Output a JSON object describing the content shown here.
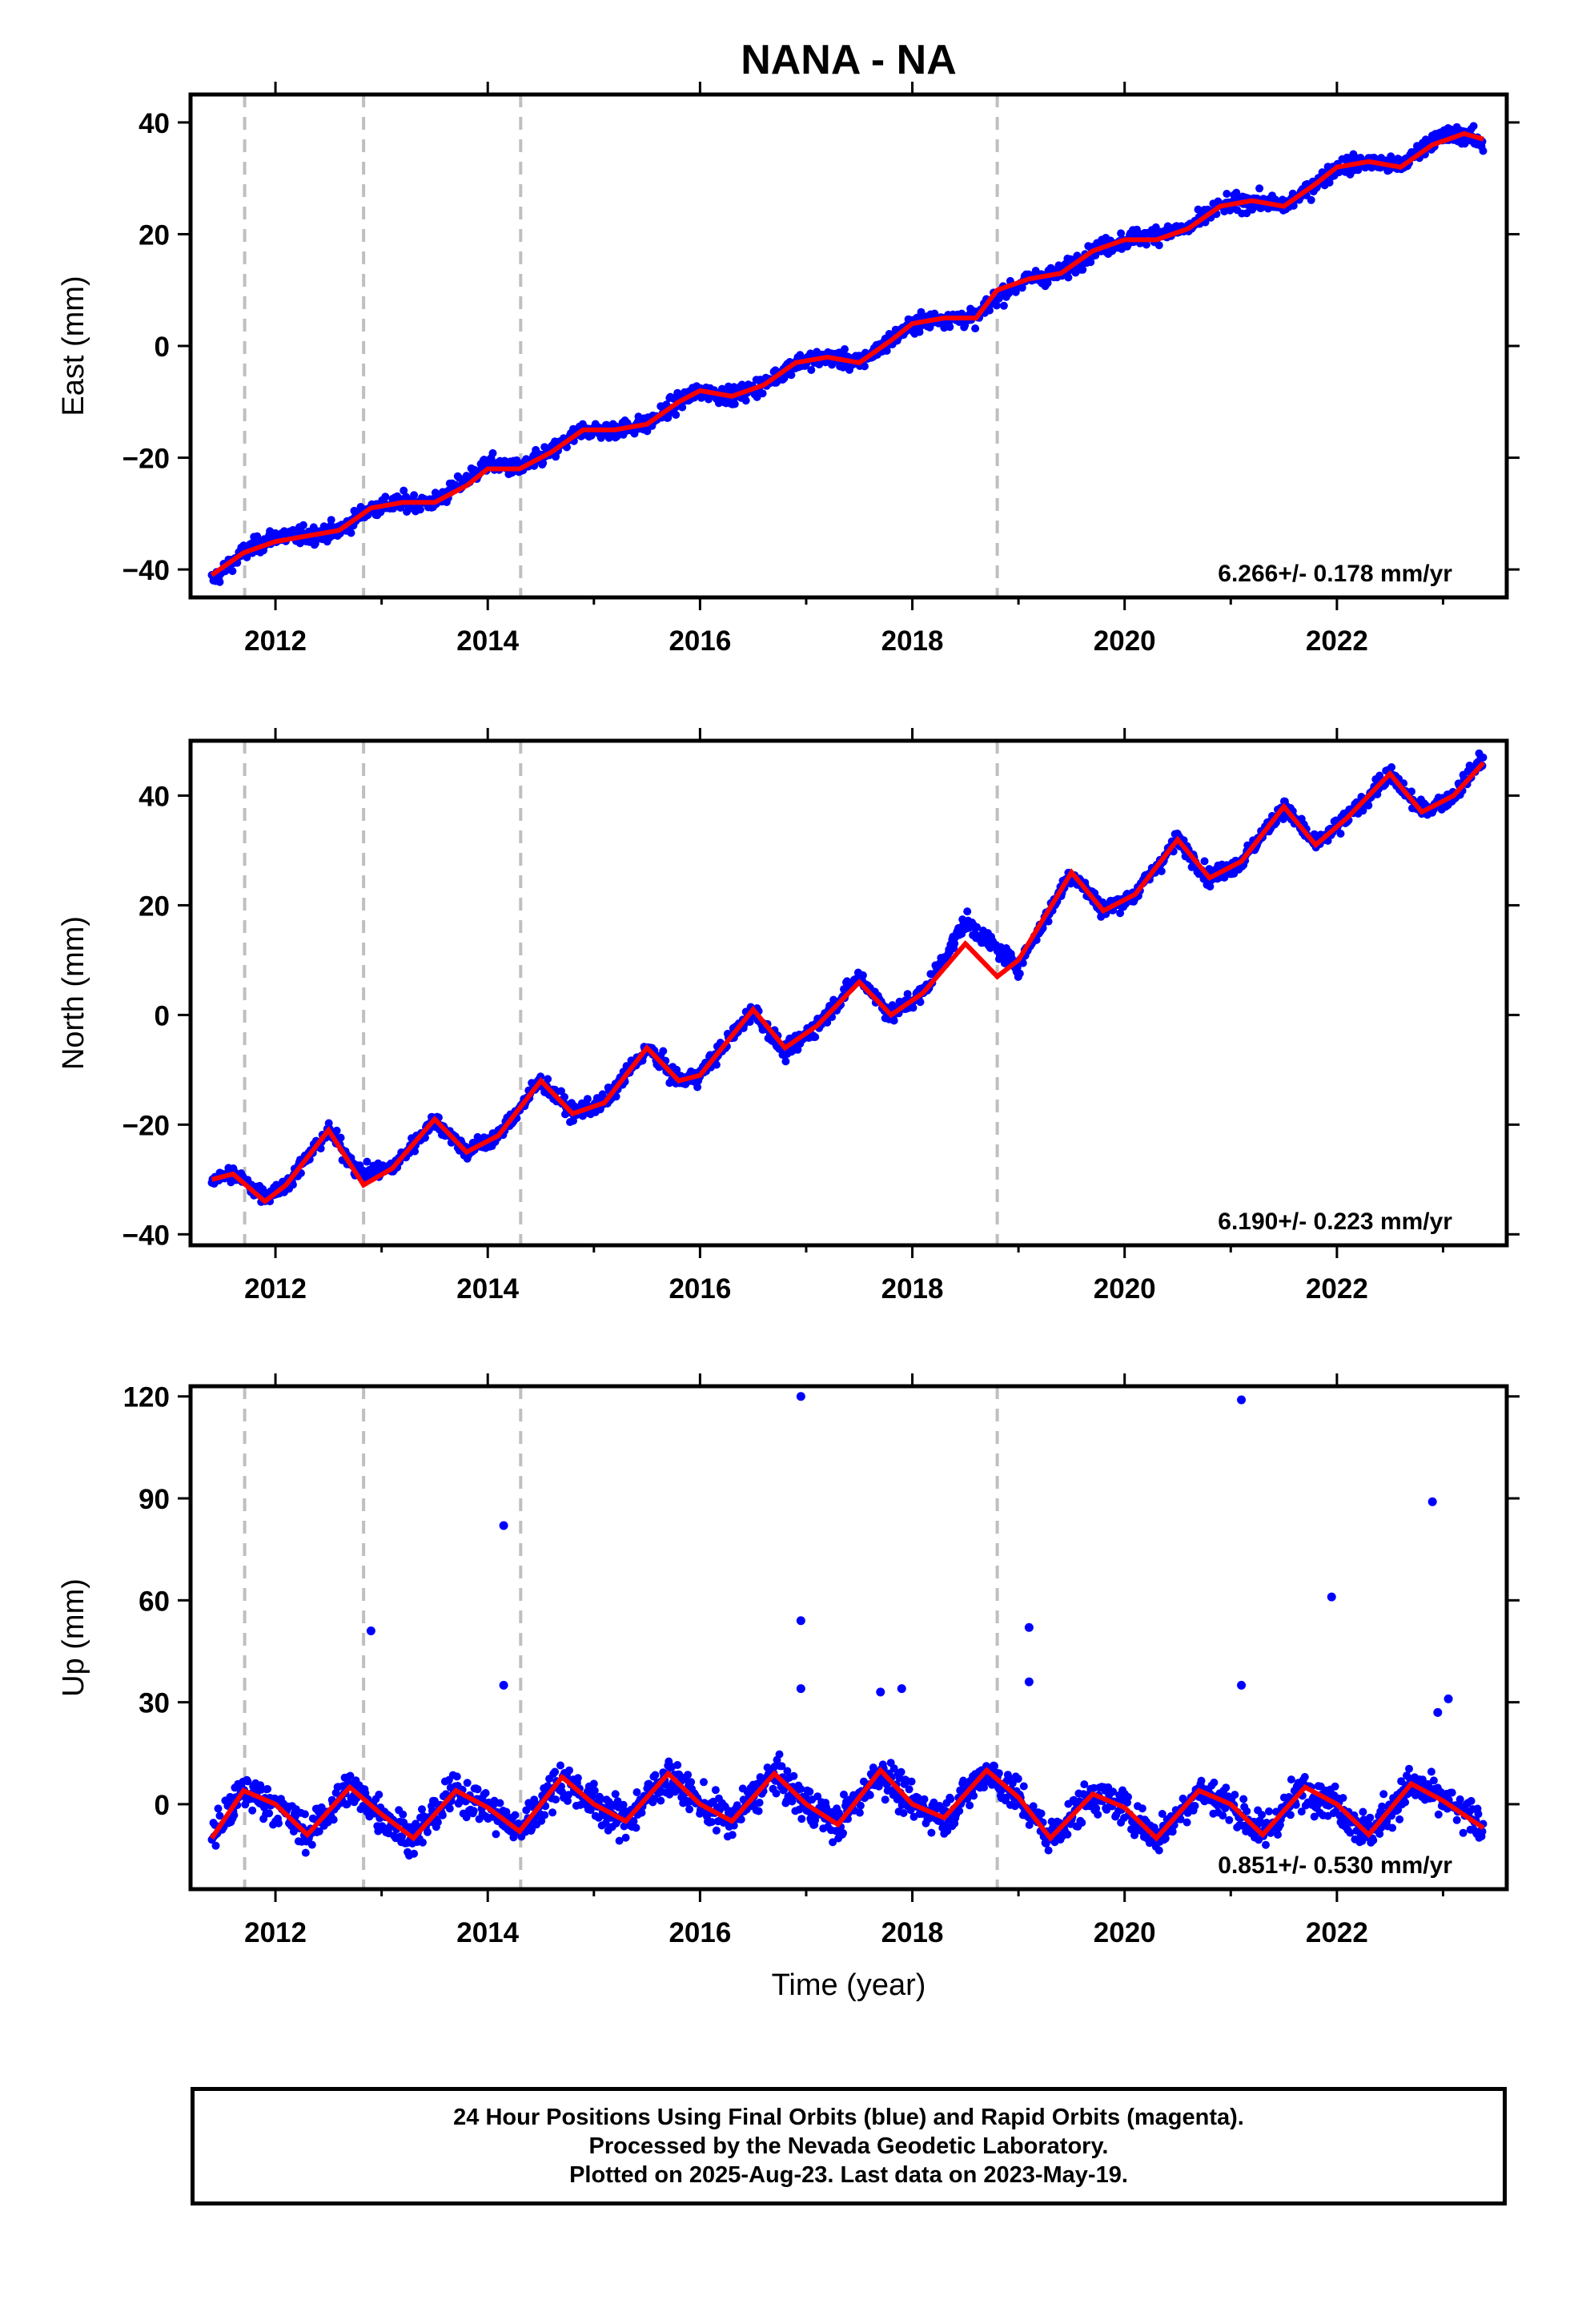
{
  "title": "NANA - NA",
  "colors": {
    "data": "#0000ff",
    "model": "#ff0000",
    "break_lines": "#bfbfbf"
  },
  "chart_data": [
    {
      "type": "scatter",
      "panel": "east",
      "ylabel": "East (mm)",
      "ylim": [
        -45,
        45
      ],
      "yticks": [
        -40,
        -20,
        0,
        20,
        40
      ],
      "xlim": [
        2011.2,
        2023.6
      ],
      "xticks": [
        2012,
        2014,
        2016,
        2018,
        2020,
        2022
      ],
      "rate_label": "6.266+/- 0.178 mm/yr",
      "breaks": [
        2011.71,
        2012.83,
        2014.31,
        2018.8
      ],
      "series": [
        {
          "name": "Final Orbits (blue)",
          "x": [
            2011.4,
            2011.7,
            2012.0,
            2012.3,
            2012.6,
            2012.9,
            2013.2,
            2013.5,
            2013.8,
            2014.0,
            2014.3,
            2014.6,
            2014.9,
            2015.2,
            2015.5,
            2015.8,
            2016.0,
            2016.3,
            2016.6,
            2016.9,
            2017.2,
            2017.5,
            2017.8,
            2018.0,
            2018.3,
            2018.6,
            2018.8,
            2019.1,
            2019.4,
            2019.7,
            2020.0,
            2020.3,
            2020.6,
            2020.9,
            2021.2,
            2021.5,
            2021.8,
            2022.0,
            2022.3,
            2022.6,
            2022.9,
            2023.2,
            2023.38
          ],
          "values": [
            -42,
            -37,
            -34,
            -34,
            -33,
            -29,
            -28,
            -28,
            -24,
            -21,
            -22,
            -19,
            -15,
            -15,
            -14,
            -10,
            -8,
            -9,
            -7,
            -3,
            -2,
            -3,
            1,
            4,
            5,
            5,
            9,
            12,
            13,
            17,
            19,
            20,
            21,
            25,
            26,
            25,
            29,
            32,
            33,
            32,
            37,
            38,
            36
          ]
        },
        {
          "name": "Model",
          "x": [
            2011.4,
            2011.7,
            2012.0,
            2012.3,
            2012.6,
            2012.9,
            2013.2,
            2013.5,
            2013.8,
            2014.0,
            2014.3,
            2014.6,
            2014.9,
            2015.2,
            2015.5,
            2015.8,
            2016.0,
            2016.3,
            2016.6,
            2016.9,
            2017.2,
            2017.5,
            2017.8,
            2018.0,
            2018.3,
            2018.6,
            2018.8,
            2019.1,
            2019.4,
            2019.7,
            2020.0,
            2020.3,
            2020.6,
            2020.9,
            2021.2,
            2021.5,
            2021.8,
            2022.0,
            2022.3,
            2022.6,
            2022.9,
            2023.2,
            2023.38
          ],
          "values": [
            -41,
            -37,
            -35,
            -34,
            -33,
            -29,
            -28,
            -28,
            -25,
            -22,
            -22,
            -19,
            -15,
            -15,
            -14,
            -10,
            -8,
            -9,
            -7,
            -3,
            -2,
            -3,
            1,
            4,
            5,
            5,
            10,
            12,
            13,
            17,
            19,
            19,
            21,
            25,
            26,
            25,
            29,
            32,
            33,
            32,
            36,
            38,
            37
          ]
        }
      ]
    },
    {
      "type": "scatter",
      "panel": "north",
      "ylabel": "North (mm)",
      "ylim": [
        -42,
        50
      ],
      "yticks": [
        -40,
        -20,
        0,
        20,
        40
      ],
      "xlim": [
        2011.2,
        2023.6
      ],
      "xticks": [
        2012,
        2014,
        2016,
        2018,
        2020,
        2022
      ],
      "rate_label": "6.190+/- 0.223 mm/yr",
      "breaks": [
        2011.71,
        2012.83,
        2014.31,
        2018.8
      ],
      "series": [
        {
          "name": "Final Orbits (blue)",
          "x": [
            2011.4,
            2011.6,
            2011.9,
            2012.1,
            2012.5,
            2012.8,
            2013.1,
            2013.5,
            2013.8,
            2014.1,
            2014.5,
            2014.8,
            2015.1,
            2015.5,
            2015.8,
            2016.0,
            2016.5,
            2016.8,
            2017.1,
            2017.5,
            2017.8,
            2018.1,
            2018.5,
            2018.8,
            2019.0,
            2019.5,
            2019.8,
            2020.1,
            2020.5,
            2020.8,
            2021.1,
            2021.5,
            2021.8,
            2022.1,
            2022.5,
            2022.8,
            2023.1,
            2023.38
          ],
          "values": [
            -30,
            -29,
            -33,
            -31,
            -21,
            -29,
            -28,
            -19,
            -25,
            -22,
            -12,
            -18,
            -16,
            -6,
            -12,
            -11,
            1,
            -7,
            -2,
            7,
            0,
            4,
            17,
            12,
            9,
            26,
            19,
            22,
            32,
            25,
            28,
            38,
            31,
            36,
            44,
            37,
            40,
            47
          ]
        },
        {
          "name": "Model",
          "x": [
            2011.4,
            2011.6,
            2011.9,
            2012.1,
            2012.5,
            2012.83,
            2013.1,
            2013.5,
            2013.8,
            2014.1,
            2014.5,
            2014.8,
            2015.1,
            2015.5,
            2015.8,
            2016.0,
            2016.5,
            2016.8,
            2017.1,
            2017.5,
            2017.8,
            2018.1,
            2018.5,
            2018.8,
            2019.0,
            2019.5,
            2019.8,
            2020.1,
            2020.5,
            2020.8,
            2021.1,
            2021.5,
            2021.8,
            2022.1,
            2022.5,
            2022.8,
            2023.1,
            2023.38
          ],
          "values": [
            -30,
            -29,
            -34,
            -31,
            -21,
            -31,
            -28,
            -19,
            -25,
            -22,
            -12,
            -18,
            -16,
            -6,
            -12,
            -11,
            1,
            -6,
            -2,
            6,
            0,
            4,
            13,
            7,
            10,
            26,
            19,
            22,
            32,
            25,
            28,
            38,
            31,
            36,
            44,
            37,
            40,
            46
          ]
        }
      ],
      "notes_visible": "none"
    },
    {
      "type": "scatter",
      "panel": "up",
      "ylabel": "Up (mm)",
      "xlabel": "Time (year)",
      "ylim": [
        -25,
        123
      ],
      "yticks": [
        0,
        30,
        60,
        90,
        120
      ],
      "xlim": [
        2011.2,
        2023.6
      ],
      "xticks": [
        2012,
        2014,
        2016,
        2018,
        2020,
        2022
      ],
      "rate_label": "0.851+/- 0.530 mm/yr",
      "breaks": [
        2011.71,
        2012.83,
        2014.31,
        2018.8
      ],
      "series": [
        {
          "name": "Final Orbits (blue)",
          "x": [
            2011.4,
            2011.7,
            2012.0,
            2012.3,
            2012.7,
            2013.0,
            2013.3,
            2013.7,
            2014.0,
            2014.3,
            2014.7,
            2015.0,
            2015.3,
            2015.7,
            2016.0,
            2016.3,
            2016.7,
            2017.0,
            2017.3,
            2017.7,
            2018.0,
            2018.3,
            2018.7,
            2019.0,
            2019.3,
            2019.7,
            2020.0,
            2020.3,
            2020.7,
            2021.0,
            2021.3,
            2021.7,
            2022.0,
            2022.3,
            2022.7,
            2023.0,
            2023.38
          ],
          "values": [
            -10,
            4,
            0,
            -9,
            5,
            -3,
            -10,
            4,
            -1,
            -8,
            8,
            0,
            -5,
            9,
            0,
            -5,
            9,
            0,
            -6,
            10,
            0,
            -4,
            10,
            2,
            -10,
            3,
            -1,
            -10,
            4,
            0,
            -9,
            5,
            0,
            -9,
            6,
            1,
            -7
          ]
        },
        {
          "name": "outliers",
          "x": [
            2012.9,
            2014.15,
            2014.15,
            2016.95,
            2016.95,
            2016.95,
            2017.7,
            2017.9,
            2019.1,
            2019.1,
            2021.1,
            2021.1,
            2021.95,
            2022.9,
            2023.05,
            2022.95
          ],
          "values": [
            51,
            82,
            35,
            120,
            54,
            34,
            33,
            34,
            52,
            36,
            119,
            35,
            61,
            89,
            31,
            27
          ]
        }
      ]
    }
  ],
  "footer": {
    "line1": "24 Hour Positions Using Final Orbits (blue) and Rapid Orbits (magenta).",
    "line2": "Processed by the Nevada Geodetic Laboratory.",
    "line3": "Plotted on 2025-Aug-23. Last data on 2023-May-19."
  }
}
